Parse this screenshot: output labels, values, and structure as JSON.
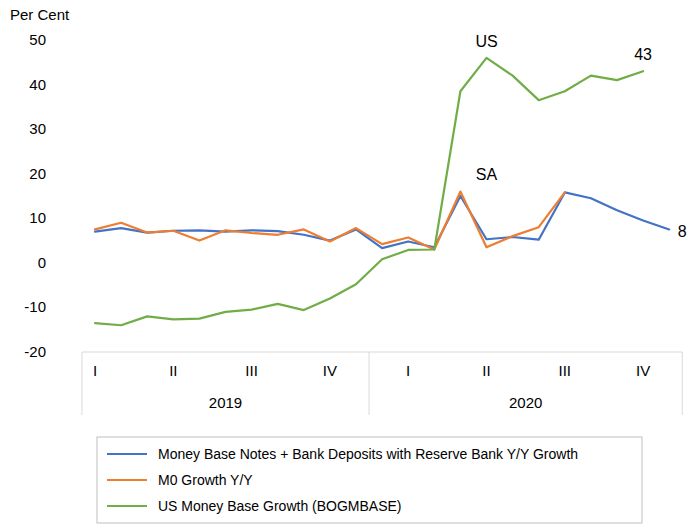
{
  "chart_data": {
    "type": "line",
    "y_label": "Per Cent",
    "categories": [
      "I",
      null,
      null,
      "II",
      null,
      null,
      "III",
      null,
      null,
      "IV",
      null,
      null,
      "I",
      null,
      null,
      "II",
      null,
      null,
      "III",
      null,
      null,
      "IV",
      null
    ],
    "x_groups": [
      {
        "label": "2019",
        "size": 11
      },
      {
        "label": "2020",
        "size": 12
      }
    ],
    "series": [
      {
        "name": "Money Base Notes + Bank Deposits with Reserve Bank Y/Y Growth",
        "color": "#4472c4",
        "values": [
          7,
          7.8,
          6.8,
          7.2,
          7.3,
          7,
          7.3,
          7.1,
          6.3,
          5,
          7.5,
          3.3,
          4.8,
          3.5,
          15,
          5.3,
          5.8,
          5.2,
          15.8,
          14.5,
          11.8,
          9.5,
          7.5
        ]
      },
      {
        "name": "M0 Growth Y/Y",
        "color": "#ed7d31",
        "values": [
          7.5,
          9,
          6.8,
          7.2,
          5,
          7.3,
          6.7,
          6.3,
          7.5,
          4.8,
          7.8,
          4.2,
          5.7,
          3,
          16,
          3.5,
          6,
          8,
          15.8,
          null,
          null,
          null,
          null
        ]
      },
      {
        "name": "US Money Base Growth (BOGMBASE)",
        "color": "#70ad47",
        "values": [
          -13.5,
          -14,
          -12,
          -12.7,
          -12.5,
          -11,
          -10.5,
          -9.2,
          -10.6,
          -8,
          -4.8,
          0.8,
          2.9,
          3,
          38.5,
          46,
          42,
          36.5,
          38.5,
          42,
          41,
          43,
          null
        ]
      }
    ],
    "annotations": [
      {
        "text": "US",
        "at": 15,
        "y": 48.5
      },
      {
        "text": "SA",
        "at": 15,
        "y": 18.6
      },
      {
        "text": "43",
        "at": 21,
        "y": 45.5
      },
      {
        "text": "8",
        "at": 22.5,
        "y": 5.8
      }
    ],
    "ylim": [
      -20,
      50
    ],
    "yticks": [
      -20,
      -10,
      0,
      10,
      20,
      30,
      40,
      50
    ],
    "grid": false,
    "legend": "bottom"
  }
}
